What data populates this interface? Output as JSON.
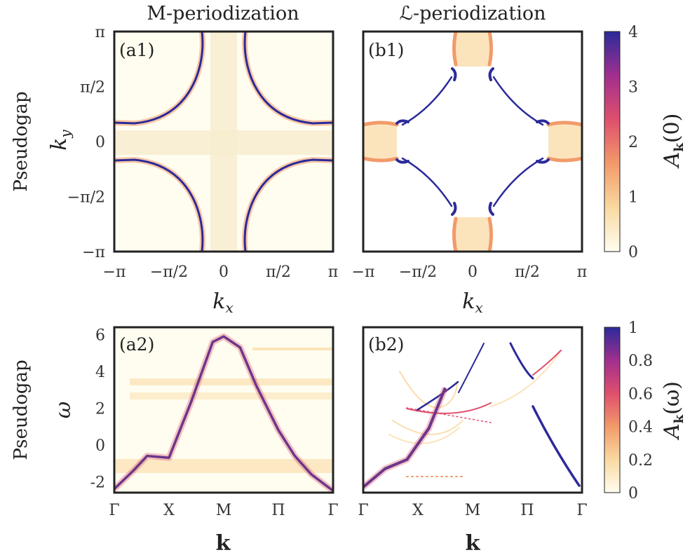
{
  "titles": {
    "left": "M-periodization",
    "right": "ℒ-periodization"
  },
  "row_labels": {
    "top": "Pseudogap",
    "bottom": "Pseudogap"
  },
  "panels": {
    "a1": "(a1)",
    "b1": "(b1)",
    "a2": "(a2)",
    "b2": "(b2)"
  },
  "axes": {
    "kx_label": "kx",
    "ky_label": "ky",
    "omega_label": "ω",
    "k_label": "k",
    "k_ticks": [
      "−π",
      "−π/2",
      "0",
      "π/2",
      "π"
    ],
    "k_tick_values": [
      -3.1416,
      -1.5708,
      0,
      1.5708,
      3.1416
    ],
    "path_ticks": [
      "Γ",
      "X",
      "M",
      "Π",
      "Γ"
    ],
    "omega_ticks": [
      "6",
      "4",
      "2",
      "0",
      "-2"
    ],
    "omega_tick_values": [
      6,
      4,
      2,
      0,
      -2
    ],
    "omega_range": [
      -2.6,
      6.4
    ]
  },
  "colorbars": {
    "top": {
      "label": "Ak(0)",
      "ticks": [
        "4",
        "3",
        "2",
        "1",
        "0"
      ],
      "tick_values": [
        4,
        3,
        2,
        1,
        0
      ],
      "range": [
        0,
        4
      ]
    },
    "bottom": {
      "label": "Ak(ω)",
      "ticks": [
        "1",
        "0.8",
        "0.6",
        "0.4",
        "0.2",
        "0"
      ],
      "tick_values": [
        1,
        0.8,
        0.6,
        0.4,
        0.2,
        0
      ],
      "range": [
        0,
        1
      ]
    }
  },
  "colors": {
    "c0": "#fffdf0",
    "c1": "#f9d9a0",
    "c2": "#f29a6a",
    "c3": "#df4f6d",
    "c4": "#a12f8f",
    "c5": "#2b2a9a",
    "frame": "#222222"
  },
  "chart_data": [
    {
      "type": "heatmap",
      "panel": "a1",
      "title": "M-periodization",
      "xlabel": "kx",
      "ylabel": "ky",
      "xlim": [
        -3.1416,
        3.1416
      ],
      "ylim": [
        -3.1416,
        3.1416
      ],
      "zlim": [
        0,
        4
      ],
      "colorbar": "Ak(0)",
      "features": "Fermi-surface arcs: vertical branches near kx = ±0.85 and horizontal branches near ky = ±0.85 bending toward the zone corners"
    },
    {
      "type": "heatmap",
      "panel": "b1",
      "title": "ℒ-periodization",
      "xlabel": "kx",
      "ylabel": "ky",
      "xlim": [
        -3.1416,
        3.1416
      ],
      "ylim": [
        -3.1416,
        3.1416
      ],
      "zlim": [
        0,
        4
      ],
      "colorbar": "Ak(0)",
      "features": "Diamond-shaped Fermi-surface segments with pockets centred at (0, ±π) and (±π, 0)"
    },
    {
      "type": "heatmap",
      "panel": "a2",
      "xlabel": "k",
      "ylabel": "ω",
      "path": [
        "Γ",
        "X",
        "M",
        "Π",
        "Γ"
      ],
      "ylim": [
        -2.6,
        6.4
      ],
      "zlim": [
        0,
        1
      ],
      "colorbar": "Ak(ω)",
      "band_path": {
        "k_index": [
          0,
          0.35,
          0.6,
          1.0,
          1.4,
          1.8,
          2.0,
          2.3,
          2.6,
          3.0,
          3.3,
          3.6,
          4.0
        ],
        "omega": [
          -2.4,
          -1.4,
          -0.6,
          -0.7,
          2.3,
          5.6,
          5.9,
          5.3,
          3.2,
          0.8,
          -0.6,
          -1.6,
          -2.5
        ]
      }
    },
    {
      "type": "heatmap",
      "panel": "b2",
      "xlabel": "k",
      "ylabel": "ω",
      "path": [
        "Γ",
        "X",
        "M",
        "Π",
        "Γ"
      ],
      "ylim": [
        -2.6,
        6.4
      ],
      "zlim": [
        0,
        1
      ],
      "colorbar": "Ak(ω)",
      "band_path": {
        "k_index": [
          0,
          0.4,
          0.8,
          1.2,
          1.5
        ],
        "omega": [
          -2.3,
          -1.3,
          -0.8,
          0.9,
          3.1
        ]
      }
    }
  ]
}
